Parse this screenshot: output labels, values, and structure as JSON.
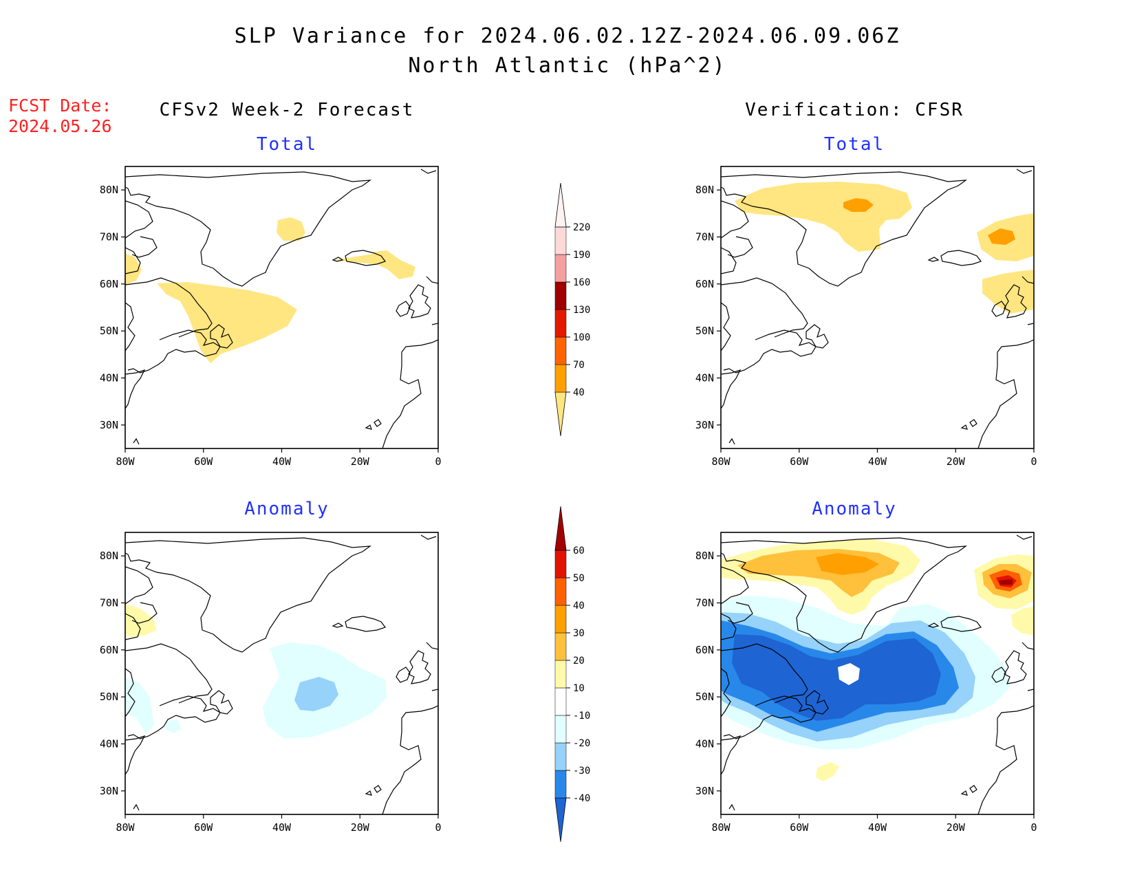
{
  "header": {
    "title_line1": "SLP Variance for 2024.06.02.12Z-2024.06.09.06Z",
    "title_line2": "North Atlantic (hPa^2)",
    "fcst_label": "FCST Date:",
    "fcst_date": "2024.05.26"
  },
  "columns": {
    "left_title": "CFSv2 Week-2 Forecast",
    "right_title": "Verification: CFSR"
  },
  "panels": {
    "total_label": "Total",
    "anomaly_label": "Anomaly"
  },
  "axes": {
    "lat_ticks": [
      "80N",
      "70N",
      "60N",
      "50N",
      "40N",
      "30N"
    ],
    "lon_ticks": [
      "80W",
      "60W",
      "40W",
      "20W",
      "0"
    ],
    "lat_range": [
      25,
      85
    ],
    "lon_range": [
      -80,
      0
    ]
  },
  "total_colorbar": {
    "labels": [
      "40",
      "70",
      "100",
      "130",
      "160",
      "190",
      "220"
    ],
    "colors": [
      "#ffe680",
      "#ffa000",
      "#ff6400",
      "#e41a00",
      "#a00000",
      "#f4a0a0",
      "#ffd8d8",
      "#fff2f2"
    ]
  },
  "anomaly_colorbar": {
    "labels": [
      "-40",
      "-30",
      "-20",
      "-10",
      "10",
      "20",
      "30",
      "40",
      "50",
      "60"
    ],
    "colors": [
      "#1e64d2",
      "#2888ea",
      "#96d2fa",
      "#e1ffff",
      "#ffffff",
      "#fffaaa",
      "#ffc03c",
      "#ffa000",
      "#ff6000",
      "#e11400",
      "#a50000"
    ]
  }
}
